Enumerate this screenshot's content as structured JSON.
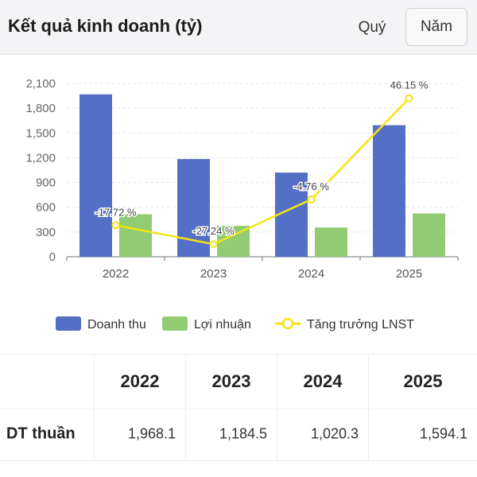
{
  "header": {
    "title": "Kết quả kinh doanh (tỷ)",
    "tab_quarter": "Quý",
    "tab_year": "Năm"
  },
  "chart_data": {
    "type": "bar",
    "categories": [
      "2022",
      "2023",
      "2024",
      "2025"
    ],
    "y_ticks": [
      "0",
      "300",
      "600",
      "900",
      "1,200",
      "1,500",
      "1,800",
      "2,100"
    ],
    "ylim": [
      0,
      2100
    ],
    "grid": true,
    "legend_position": "bottom",
    "series": [
      {
        "name": "Doanh thu",
        "type": "bar",
        "color": "#5470c6",
        "values": [
          1968.1,
          1184.5,
          1020.3,
          1594.1
        ]
      },
      {
        "name": "Lợi nhuận",
        "type": "bar",
        "color": "#91cc75",
        "values": [
          515,
          375,
          355,
          525
        ]
      },
      {
        "name": "Tăng trưởng LNST",
        "type": "line",
        "color": "#f5e50f",
        "values": [
          -17.72,
          -27.24,
          -4.76,
          46.15
        ],
        "labels": [
          "-17.72 %",
          "-27.24 %",
          "-4.76 %",
          "46.15 %"
        ]
      }
    ]
  },
  "table": {
    "headers": [
      "2022",
      "2023",
      "2024",
      "2025"
    ],
    "rows": [
      {
        "label": "DT thuần",
        "values": [
          "1,968.1",
          "1,184.5",
          "1,020.3",
          "1,594.1"
        ]
      }
    ]
  }
}
